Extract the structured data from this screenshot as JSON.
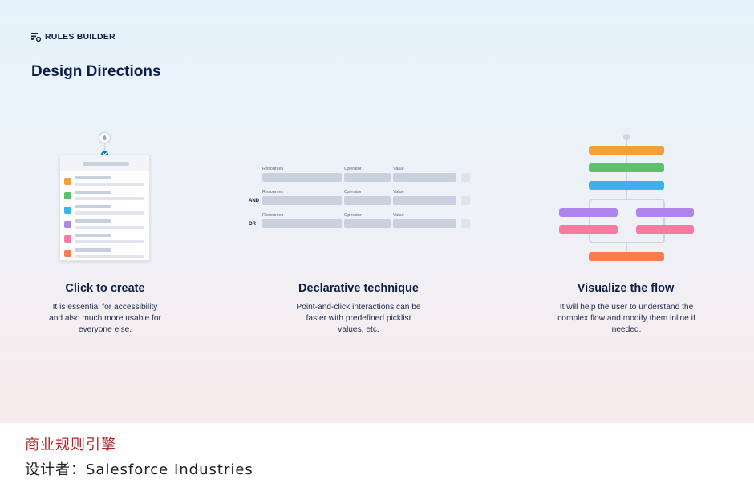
{
  "brand": {
    "name": "RULES BUILDER",
    "icon": "rules-list-icon"
  },
  "page_title": "Design Directions",
  "columns": [
    {
      "title": "Click to create",
      "description": "It is essential for accessibility and also much more usable for everyone else."
    },
    {
      "title": "Declarative technique",
      "description": "Point-and-click interactions can be faster with predefined picklist values, etc."
    },
    {
      "title": "Visualize the flow",
      "description": "It will help the user to understand the complex flow and modify them inline if needed."
    }
  ],
  "list_illustration": {
    "item_colors": [
      "#f4a03a",
      "#5cc06c",
      "#3cb2e8",
      "#b084ec",
      "#f57ba0",
      "#f87b52"
    ],
    "accent": "#0a6cbd"
  },
  "condition_rows": [
    {
      "logic": "",
      "labels": {
        "resources": "Resources",
        "operator": "Operator",
        "value": "Value"
      }
    },
    {
      "logic": "AND",
      "labels": {
        "resources": "Resources",
        "operator": "Operator",
        "value": "Value"
      }
    },
    {
      "logic": "OR",
      "labels": {
        "resources": "Resources",
        "operator": "Operator",
        "value": "Value"
      }
    }
  ],
  "flow_illustration": {
    "colors": {
      "orange": "#f4a03a",
      "green": "#5cc06c",
      "blue": "#3cb2e8",
      "purple": "#b084ec",
      "pink": "#f57ba0",
      "coral": "#f87b52",
      "connector": "#cfd6e3"
    }
  },
  "caption": {
    "line1": "商业规则引擎",
    "line2": "设计者：Salesforce Industries"
  }
}
